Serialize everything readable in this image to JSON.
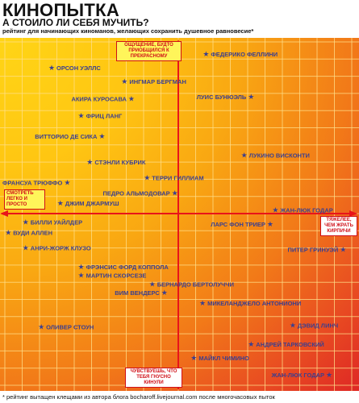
{
  "header": {
    "title": "КИНОПЫТКА",
    "subtitle": "А СТОИЛО ЛИ СЕБЯ МУЧИТЬ?",
    "tagline": "рейтинг для начинающих киноманов, желающих сохранить душевное равновесие*"
  },
  "footer": {
    "footnote": "* рейтинг вытащен клещами из автора блога bocharoff.livejournal.com после многочасовых пыток"
  },
  "axis_labels": {
    "top": "ОЩУЩЕНИЕ, БУДТО ПРИОБЩИЛСЯ К ПРЕКРАСНОМУ",
    "left": "СМОТРЕТЬ ЛЕГКО И ПРОСТО",
    "right": "ТЯЖЕЛЕЕ, ЧЕМ ЖРАТЬ КИРПИЧИ",
    "bottom": "ЧУВСТВУЕШЬ, ЧТО ТЕБЯ ГНУСНО КИНУЛИ"
  },
  "colors": {
    "axis": "#e8141a",
    "point": "#3b3f8f",
    "gradient_start": "#ffd516",
    "gradient_end": "#df2a24"
  },
  "chart_data": {
    "type": "scatter",
    "xlim": [
      -10,
      10
    ],
    "ylim": [
      -10,
      10
    ],
    "grid": true,
    "points": [
      {
        "label": "ФЕДЕРИКО ФЕЛЛИНИ",
        "x": 1.6,
        "y": 9.3,
        "label_side": "right"
      },
      {
        "label": "ОРСОН УЭЛЛС",
        "x": -7.3,
        "y": 8.5,
        "label_side": "right"
      },
      {
        "label": "ИНГМАР БЕРГМАН",
        "x": -3.1,
        "y": 7.7,
        "label_side": "right"
      },
      {
        "label": "ЛУИС БУНЮЭЛЬ",
        "x": 4.2,
        "y": 6.8,
        "label_side": "left"
      },
      {
        "label": "АКИРА КУРОСАВА",
        "x": -2.7,
        "y": 6.7,
        "label_side": "left"
      },
      {
        "label": "ФРИЦ ЛАНГ",
        "x": -5.6,
        "y": 5.7,
        "label_side": "right"
      },
      {
        "label": "ВИТТОРИО ДЕ СИКА",
        "x": -4.4,
        "y": 4.5,
        "label_side": "left"
      },
      {
        "label": "ЛУКИНО ВИСКОНТИ",
        "x": 3.8,
        "y": 3.4,
        "label_side": "right"
      },
      {
        "label": "СТЭНЛИ КУБРИК",
        "x": -5.1,
        "y": 3.0,
        "label_side": "right"
      },
      {
        "label": "ТЕРРИ ГИЛЛИАМ",
        "x": -1.8,
        "y": 2.1,
        "label_side": "right"
      },
      {
        "label": "ФРАНСУА ТРЮФФО",
        "x": -6.4,
        "y": 1.8,
        "label_side": "left"
      },
      {
        "label": "ПЕДРО АЛЬМОДОВАР",
        "x": -0.2,
        "y": 1.2,
        "label_side": "left"
      },
      {
        "label": "ДЖИМ ДЖАРМУШ",
        "x": -6.8,
        "y": 0.6,
        "label_side": "right"
      },
      {
        "label": "ЖАН-ЛЮК ГОДАР",
        "x": 5.6,
        "y": 0.2,
        "label_side": "right"
      },
      {
        "label": "БИЛЛИ УАЙЛДЕР",
        "x": -8.8,
        "y": -0.5,
        "label_side": "right"
      },
      {
        "label": "ЛАРС ФОН ТРИЕР",
        "x": 5.3,
        "y": -0.6,
        "label_side": "left"
      },
      {
        "label": "ВУДИ АЛЛЕН",
        "x": -9.8,
        "y": -1.1,
        "label_side": "right"
      },
      {
        "label": "АНРИ-ЖОРЖ КЛУЗО",
        "x": -8.8,
        "y": -2.0,
        "label_side": "right"
      },
      {
        "label": "ПИТЕР ГРИНУЭЙ",
        "x": 9.5,
        "y": -2.1,
        "label_side": "left"
      },
      {
        "label": "ФРЭНСИС ФОРД КОППОЛА",
        "x": -5.6,
        "y": -3.1,
        "label_side": "right"
      },
      {
        "label": "МАРТИН СКОРСЕЗЕ",
        "x": -5.6,
        "y": -3.6,
        "label_side": "right"
      },
      {
        "label": "БЕРНАРДО БЕРТОЛУЧЧИ",
        "x": -1.5,
        "y": -4.1,
        "label_side": "right"
      },
      {
        "label": "ВИМ ВЕНДЕРС",
        "x": -0.8,
        "y": -4.6,
        "label_side": "left"
      },
      {
        "label": "МИКЕЛАНДЖЕЛО АНТОНИОНИ",
        "x": 1.4,
        "y": -5.2,
        "label_side": "right"
      },
      {
        "label": "ОЛИВЕР СТОУН",
        "x": -7.9,
        "y": -6.6,
        "label_side": "right"
      },
      {
        "label": "ДЭВИД ЛИНЧ",
        "x": 6.6,
        "y": -6.5,
        "label_side": "right"
      },
      {
        "label": "АНДРЕЙ ТАРКОВСКИЙ",
        "x": 4.2,
        "y": -7.6,
        "label_side": "right"
      },
      {
        "label": "МАЙКЛ ЧИМИНО",
        "x": 0.9,
        "y": -8.4,
        "label_side": "right"
      },
      {
        "label": "ЖАН-ЛЮК ГОДАР",
        "x": 8.7,
        "y": -9.4,
        "label_side": "left"
      }
    ]
  }
}
